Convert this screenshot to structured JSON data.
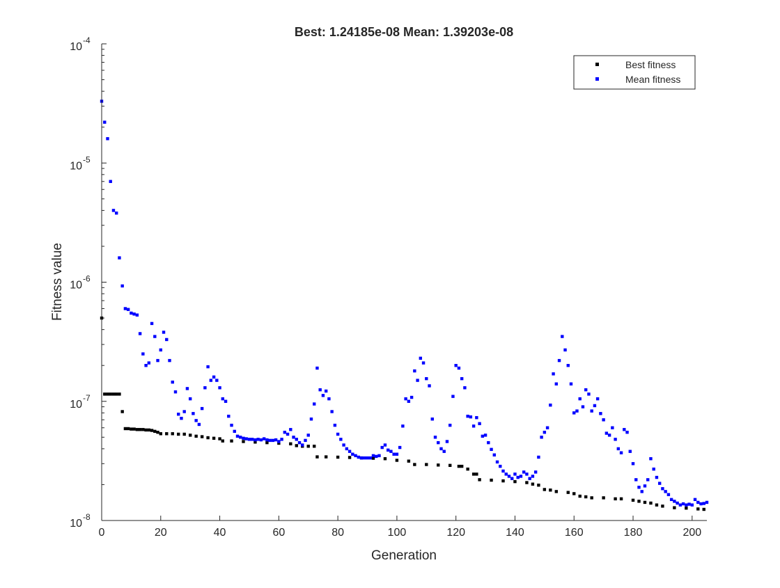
{
  "chart_data": {
    "type": "scatter",
    "title": "Best: 1.24185e-08 Mean: 1.39203e-08",
    "xlabel": "Generation",
    "ylabel": "Fitness value",
    "xlim": [
      0,
      205
    ],
    "ylim": [
      1e-08,
      0.0001
    ],
    "yscale": "log",
    "grid": false,
    "legend_position": "top-right",
    "x_ticks": [
      0,
      20,
      40,
      60,
      80,
      100,
      120,
      140,
      160,
      180,
      200
    ],
    "x_tick_labels": [
      "0",
      "20",
      "40",
      "60",
      "80",
      "100",
      "120",
      "140",
      "160",
      "180",
      "200"
    ],
    "y_ticks": [
      1e-08,
      1e-07,
      1e-06,
      1e-05,
      0.0001
    ],
    "y_tick_labels": [
      {
        "base": "10",
        "exp": "-8"
      },
      {
        "base": "10",
        "exp": "-7"
      },
      {
        "base": "10",
        "exp": "-6"
      },
      {
        "base": "10",
        "exp": "-5"
      },
      {
        "base": "10",
        "exp": "-4"
      }
    ],
    "series": [
      {
        "name": "Best fitness",
        "color": "#000000",
        "marker": "square",
        "points": [
          [
            0,
            5e-07
          ],
          [
            1,
            1.15e-07
          ],
          [
            2,
            1.15e-07
          ],
          [
            3,
            1.15e-07
          ],
          [
            4,
            1.15e-07
          ],
          [
            5,
            1.15e-07
          ],
          [
            6,
            1.15e-07
          ],
          [
            7,
            8.2e-08
          ],
          [
            8,
            5.9e-08
          ],
          [
            9,
            5.9e-08
          ],
          [
            10,
            5.85e-08
          ],
          [
            11,
            5.85e-08
          ],
          [
            12,
            5.8e-08
          ],
          [
            13,
            5.8e-08
          ],
          [
            14,
            5.8e-08
          ],
          [
            15,
            5.75e-08
          ],
          [
            16,
            5.75e-08
          ],
          [
            17,
            5.7e-08
          ],
          [
            18,
            5.6e-08
          ],
          [
            19,
            5.5e-08
          ],
          [
            20,
            5.35e-08
          ],
          [
            22,
            5.35e-08
          ],
          [
            24,
            5.35e-08
          ],
          [
            26,
            5.3e-08
          ],
          [
            28,
            5.3e-08
          ],
          [
            30,
            5.2e-08
          ],
          [
            32,
            5.1e-08
          ],
          [
            34,
            5.05e-08
          ],
          [
            36,
            4.95e-08
          ],
          [
            38,
            4.9e-08
          ],
          [
            40,
            4.85e-08
          ],
          [
            41,
            4.65e-08
          ],
          [
            44,
            4.65e-08
          ],
          [
            48,
            4.6e-08
          ],
          [
            52,
            4.55e-08
          ],
          [
            56,
            4.5e-08
          ],
          [
            60,
            4.45e-08
          ],
          [
            64,
            4.4e-08
          ],
          [
            66,
            4.25e-08
          ],
          [
            68,
            4.2e-08
          ],
          [
            70,
            4.2e-08
          ],
          [
            72,
            4.2e-08
          ],
          [
            73,
            3.42e-08
          ],
          [
            76,
            3.42e-08
          ],
          [
            80,
            3.4e-08
          ],
          [
            84,
            3.38e-08
          ],
          [
            88,
            3.35e-08
          ],
          [
            92,
            3.33e-08
          ],
          [
            96,
            3.3e-08
          ],
          [
            100,
            3.2e-08
          ],
          [
            104,
            3.15e-08
          ],
          [
            106,
            2.95e-08
          ],
          [
            110,
            2.95e-08
          ],
          [
            114,
            2.92e-08
          ],
          [
            118,
            2.9e-08
          ],
          [
            121,
            2.85e-08
          ],
          [
            122,
            2.85e-08
          ],
          [
            124,
            2.7e-08
          ],
          [
            126,
            2.45e-08
          ],
          [
            127,
            2.45e-08
          ],
          [
            128,
            2.2e-08
          ],
          [
            132,
            2.18e-08
          ],
          [
            136,
            2.15e-08
          ],
          [
            140,
            2.12e-08
          ],
          [
            144,
            2.08e-08
          ],
          [
            146,
            2.02e-08
          ],
          [
            148,
            1.98e-08
          ],
          [
            150,
            1.82e-08
          ],
          [
            152,
            1.8e-08
          ],
          [
            154,
            1.75e-08
          ],
          [
            158,
            1.72e-08
          ],
          [
            160,
            1.68e-08
          ],
          [
            162,
            1.6e-08
          ],
          [
            164,
            1.58e-08
          ],
          [
            166,
            1.55e-08
          ],
          [
            170,
            1.55e-08
          ],
          [
            174,
            1.52e-08
          ],
          [
            176,
            1.52e-08
          ],
          [
            180,
            1.48e-08
          ],
          [
            182,
            1.45e-08
          ],
          [
            184,
            1.42e-08
          ],
          [
            186,
            1.4e-08
          ],
          [
            188,
            1.35e-08
          ],
          [
            190,
            1.32e-08
          ],
          [
            194,
            1.28e-08
          ],
          [
            198,
            1.27e-08
          ],
          [
            202,
            1.25e-08
          ],
          [
            204,
            1.24e-08
          ]
        ]
      },
      {
        "name": "Mean fitness",
        "color": "#0000FF",
        "marker": "square",
        "points": [
          [
            0,
            3.3e-05
          ],
          [
            1,
            2.2e-05
          ],
          [
            2,
            1.6e-05
          ],
          [
            3,
            7e-06
          ],
          [
            4,
            4e-06
          ],
          [
            5,
            3.8e-06
          ],
          [
            6,
            1.6e-06
          ],
          [
            7,
            9.3e-07
          ],
          [
            8,
            6e-07
          ],
          [
            9,
            5.9e-07
          ],
          [
            10,
            5.5e-07
          ],
          [
            11,
            5.4e-07
          ],
          [
            12,
            5.3e-07
          ],
          [
            13,
            3.7e-07
          ],
          [
            14,
            2.5e-07
          ],
          [
            15,
            2e-07
          ],
          [
            16,
            2.1e-07
          ],
          [
            17,
            4.5e-07
          ],
          [
            18,
            3.5e-07
          ],
          [
            19,
            2.2e-07
          ],
          [
            20,
            2.7e-07
          ],
          [
            21,
            3.8e-07
          ],
          [
            22,
            3.3e-07
          ],
          [
            23,
            2.2e-07
          ],
          [
            24,
            1.45e-07
          ],
          [
            25,
            1.2e-07
          ],
          [
            26,
            7.8e-08
          ],
          [
            27,
            7.2e-08
          ],
          [
            28,
            8.2e-08
          ],
          [
            29,
            1.28e-07
          ],
          [
            30,
            1.05e-07
          ],
          [
            31,
            7.9e-08
          ],
          [
            32,
            6.9e-08
          ],
          [
            33,
            6.4e-08
          ],
          [
            34,
            8.7e-08
          ],
          [
            35,
            1.3e-07
          ],
          [
            36,
            1.95e-07
          ],
          [
            37,
            1.5e-07
          ],
          [
            38,
            1.6e-07
          ],
          [
            39,
            1.5e-07
          ],
          [
            40,
            1.3e-07
          ],
          [
            41,
            1.05e-07
          ],
          [
            42,
            1e-07
          ],
          [
            43,
            7.5e-08
          ],
          [
            44,
            6.3e-08
          ],
          [
            45,
            5.6e-08
          ],
          [
            46,
            5.1e-08
          ],
          [
            47,
            5e-08
          ],
          [
            48,
            4.9e-08
          ],
          [
            49,
            4.85e-08
          ],
          [
            50,
            4.8e-08
          ],
          [
            51,
            4.8e-08
          ],
          [
            52,
            4.75e-08
          ],
          [
            53,
            4.8e-08
          ],
          [
            54,
            4.75e-08
          ],
          [
            55,
            4.85e-08
          ],
          [
            56,
            4.75e-08
          ],
          [
            57,
            4.7e-08
          ],
          [
            58,
            4.7e-08
          ],
          [
            59,
            4.75e-08
          ],
          [
            60,
            4.6e-08
          ],
          [
            61,
            4.8e-08
          ],
          [
            62,
            5.5e-08
          ],
          [
            63,
            5.3e-08
          ],
          [
            64,
            5.8e-08
          ],
          [
            65,
            5e-08
          ],
          [
            66,
            4.8e-08
          ],
          [
            67,
            4.5e-08
          ],
          [
            68,
            4.3e-08
          ],
          [
            69,
            4.7e-08
          ],
          [
            70,
            5.2e-08
          ],
          [
            71,
            7.1e-08
          ],
          [
            72,
            9.5e-08
          ],
          [
            73,
            1.9e-07
          ],
          [
            74,
            1.25e-07
          ],
          [
            75,
            1.12e-07
          ],
          [
            76,
            1.22e-07
          ],
          [
            77,
            1.05e-07
          ],
          [
            78,
            8.2e-08
          ],
          [
            79,
            6.3e-08
          ],
          [
            80,
            5.3e-08
          ],
          [
            81,
            4.8e-08
          ],
          [
            82,
            4.3e-08
          ],
          [
            83,
            4e-08
          ],
          [
            84,
            3.8e-08
          ],
          [
            85,
            3.6e-08
          ],
          [
            86,
            3.5e-08
          ],
          [
            87,
            3.4e-08
          ],
          [
            88,
            3.35e-08
          ],
          [
            89,
            3.35e-08
          ],
          [
            90,
            3.35e-08
          ],
          [
            91,
            3.35e-08
          ],
          [
            92,
            3.5e-08
          ],
          [
            93,
            3.45e-08
          ],
          [
            94,
            3.5e-08
          ],
          [
            95,
            4.1e-08
          ],
          [
            96,
            4.3e-08
          ],
          [
            97,
            3.9e-08
          ],
          [
            98,
            3.8e-08
          ],
          [
            99,
            3.6e-08
          ],
          [
            100,
            3.6e-08
          ],
          [
            101,
            4.1e-08
          ],
          [
            102,
            6.2e-08
          ],
          [
            103,
            1.05e-07
          ],
          [
            104,
            1e-07
          ],
          [
            105,
            1.08e-07
          ],
          [
            106,
            1.8e-07
          ],
          [
            107,
            1.5e-07
          ],
          [
            108,
            2.3e-07
          ],
          [
            109,
            2.1e-07
          ],
          [
            110,
            1.55e-07
          ],
          [
            111,
            1.35e-07
          ],
          [
            112,
            7.1e-08
          ],
          [
            113,
            5e-08
          ],
          [
            114,
            4.5e-08
          ],
          [
            115,
            4e-08
          ],
          [
            116,
            3.8e-08
          ],
          [
            117,
            4.6e-08
          ],
          [
            118,
            6.3e-08
          ],
          [
            119,
            1.1e-07
          ],
          [
            120,
            2e-07
          ],
          [
            121,
            1.9e-07
          ],
          [
            122,
            1.55e-07
          ],
          [
            123,
            1.3e-07
          ],
          [
            124,
            7.5e-08
          ],
          [
            125,
            7.4e-08
          ],
          [
            126,
            6.2e-08
          ],
          [
            127,
            7.3e-08
          ],
          [
            128,
            6.5e-08
          ],
          [
            129,
            5.1e-08
          ],
          [
            130,
            5.2e-08
          ],
          [
            131,
            4.5e-08
          ],
          [
            132,
            3.95e-08
          ],
          [
            133,
            3.55e-08
          ],
          [
            134,
            3.1e-08
          ],
          [
            135,
            2.85e-08
          ],
          [
            136,
            2.6e-08
          ],
          [
            137,
            2.45e-08
          ],
          [
            138,
            2.35e-08
          ],
          [
            139,
            2.25e-08
          ],
          [
            140,
            2.45e-08
          ],
          [
            141,
            2.3e-08
          ],
          [
            142,
            2.35e-08
          ],
          [
            143,
            2.55e-08
          ],
          [
            144,
            2.45e-08
          ],
          [
            145,
            2.25e-08
          ],
          [
            146,
            2.35e-08
          ],
          [
            147,
            2.55e-08
          ],
          [
            148,
            3.4e-08
          ],
          [
            149,
            5e-08
          ],
          [
            150,
            5.5e-08
          ],
          [
            151,
            6e-08
          ],
          [
            152,
            9.3e-08
          ],
          [
            153,
            1.7e-07
          ],
          [
            154,
            1.4e-07
          ],
          [
            155,
            2.2e-07
          ],
          [
            156,
            3.5e-07
          ],
          [
            157,
            2.7e-07
          ],
          [
            158,
            2e-07
          ],
          [
            159,
            1.4e-07
          ],
          [
            160,
            8e-08
          ],
          [
            161,
            8.3e-08
          ],
          [
            162,
            1.05e-07
          ],
          [
            163,
            9e-08
          ],
          [
            164,
            1.25e-07
          ],
          [
            165,
            1.15e-07
          ],
          [
            166,
            8.3e-08
          ],
          [
            167,
            9.2e-08
          ],
          [
            168,
            1.05e-07
          ],
          [
            169,
            7.9e-08
          ],
          [
            170,
            7e-08
          ],
          [
            171,
            5.4e-08
          ],
          [
            172,
            5.2e-08
          ],
          [
            173,
            6e-08
          ],
          [
            174,
            4.8e-08
          ],
          [
            175,
            4e-08
          ],
          [
            176,
            3.7e-08
          ],
          [
            177,
            5.8e-08
          ],
          [
            178,
            5.5e-08
          ],
          [
            179,
            3.8e-08
          ],
          [
            180,
            3e-08
          ],
          [
            181,
            2.2e-08
          ],
          [
            182,
            1.9e-08
          ],
          [
            183,
            1.75e-08
          ],
          [
            184,
            1.95e-08
          ],
          [
            185,
            2.2e-08
          ],
          [
            186,
            3.3e-08
          ],
          [
            187,
            2.7e-08
          ],
          [
            188,
            2.3e-08
          ],
          [
            189,
            2.05e-08
          ],
          [
            190,
            1.85e-08
          ],
          [
            191,
            1.75e-08
          ],
          [
            192,
            1.65e-08
          ],
          [
            193,
            1.5e-08
          ],
          [
            194,
            1.45e-08
          ],
          [
            195,
            1.4e-08
          ],
          [
            196,
            1.35e-08
          ],
          [
            197,
            1.38e-08
          ],
          [
            198,
            1.35e-08
          ],
          [
            199,
            1.37e-08
          ],
          [
            200,
            1.35e-08
          ],
          [
            201,
            1.5e-08
          ],
          [
            202,
            1.42e-08
          ],
          [
            203,
            1.38e-08
          ],
          [
            204,
            1.39e-08
          ],
          [
            205,
            1.42e-08
          ]
        ]
      }
    ]
  }
}
